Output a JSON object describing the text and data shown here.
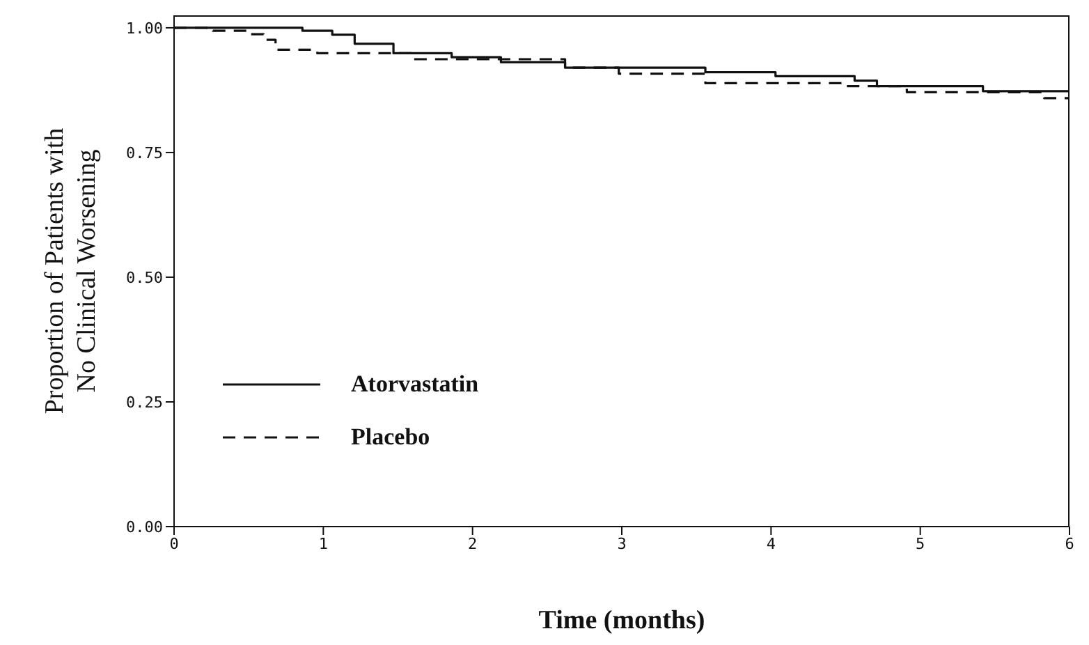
{
  "chart_data": {
    "type": "step",
    "xlabel": "Time (months)",
    "ylabel": "Proportion of Patients with No Clinical Worsening",
    "xlim": [
      0,
      6
    ],
    "xticks": [
      0,
      1,
      2,
      3,
      4,
      5,
      6
    ],
    "ylim": [
      0,
      1.025
    ],
    "yticks": [
      {
        "value": 0,
        "label": "0.00"
      },
      {
        "value": 0.25,
        "label": "0.25"
      },
      {
        "value": 0.5,
        "label": "0.50"
      },
      {
        "value": 0.75,
        "label": "0.75"
      },
      {
        "value": 1,
        "label": "1.00"
      }
    ],
    "legend": "bottom left",
    "series": [
      {
        "name": "Atorvastatin",
        "color": "#111111",
        "line_style": "solid",
        "x": [
          0,
          0.86,
          1.06,
          1.21,
          1.47,
          1.86,
          2.19,
          2.62,
          3.56,
          4.03,
          4.56,
          4.71,
          5.42,
          6
        ],
        "values": [
          1,
          0.994,
          0.986,
          0.968,
          0.949,
          0.941,
          0.931,
          0.92,
          0.911,
          0.903,
          0.894,
          0.883,
          0.873,
          0.873
        ]
      },
      {
        "name": "Placebo",
        "color": "#111111",
        "line_style": "dashed",
        "x": [
          0,
          0.26,
          0.49,
          0.6,
          0.68,
          0.96,
          1.59,
          2.62,
          2.98,
          3.56,
          4.5,
          4.91,
          5.83,
          6
        ],
        "values": [
          1,
          0.994,
          0.987,
          0.976,
          0.956,
          0.949,
          0.937,
          0.92,
          0.908,
          0.889,
          0.883,
          0.871,
          0.859,
          0.859
        ]
      }
    ]
  }
}
